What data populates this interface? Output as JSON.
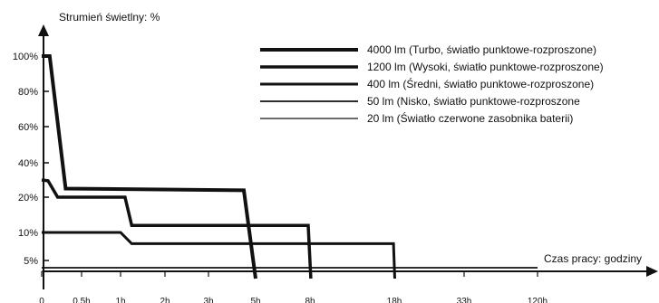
{
  "chart_data": {
    "type": "line",
    "ylabel": "Strumień świetlny: %",
    "xlabel": "Czas pracy: godziny",
    "x_ticks": [
      "0",
      "0,5h",
      "1h",
      "2h",
      "3h",
      "5h",
      "8h",
      "18h",
      "33h",
      "120h"
    ],
    "y_ticks": [
      "5%",
      "10%",
      "20%",
      "40%",
      "60%",
      "80%",
      "100%"
    ],
    "scale_note": "both axes non-linear; labelled ticks are evenly spaced",
    "grid": false,
    "legend_position": "top-right",
    "series": [
      {
        "name": "4000 lm (Turbo, światło punktowe-rozproszone)",
        "points": [
          [
            0,
            100
          ],
          [
            0.1,
            100
          ],
          [
            0.3,
            25
          ],
          [
            4.5,
            24
          ],
          [
            5,
            0
          ]
        ]
      },
      {
        "name": "1200 lm (Wysoki, światło punktowe-rozproszone)",
        "points": [
          [
            0,
            30
          ],
          [
            0.08,
            29.5
          ],
          [
            0.2,
            20
          ],
          [
            1.1,
            20
          ],
          [
            1.25,
            12
          ],
          [
            7.9,
            12
          ],
          [
            8.1,
            0
          ]
        ]
      },
      {
        "name": "400 lm (Średni, światło punktowe-rozproszone)",
        "points": [
          [
            0,
            10
          ],
          [
            1.0,
            10
          ],
          [
            1.25,
            8
          ],
          [
            17.9,
            8
          ],
          [
            18.1,
            0
          ]
        ]
      },
      {
        "name": "50 lm (Nisko, światło punktowe-rozproszone",
        "points": [
          [
            0,
            3
          ],
          [
            120,
            3
          ]
        ]
      },
      {
        "name": "20 lm (Światło czerwone zasobnika baterii)",
        "points": [
          [
            0,
            2
          ],
          [
            33,
            2
          ]
        ]
      }
    ]
  }
}
